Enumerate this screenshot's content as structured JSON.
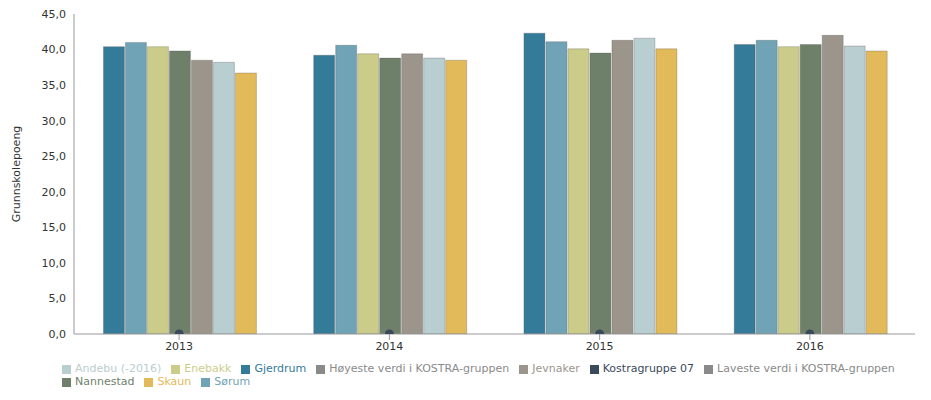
{
  "chart_data": {
    "type": "bar",
    "y_label": "Grunnskolepoeng",
    "categories": [
      "2013",
      "2014",
      "2015",
      "2016"
    ],
    "series": [
      {
        "name": "Gjerdrum",
        "color": "#347a99",
        "values": [
          40.4,
          39.2,
          42.3,
          40.7
        ]
      },
      {
        "name": "Sørum",
        "color": "#6fa3b5",
        "values": [
          41.0,
          40.6,
          41.1,
          41.3
        ]
      },
      {
        "name": "Enebakk",
        "color": "#cccc8a",
        "values": [
          40.4,
          39.4,
          40.1,
          40.4
        ]
      },
      {
        "name": "Nannestad",
        "color": "#6e7f6a",
        "values": [
          39.8,
          38.8,
          39.5,
          40.7
        ]
      },
      {
        "name": "Jevnaker",
        "color": "#9c958b",
        "values": [
          38.5,
          39.4,
          41.3,
          42.0
        ]
      },
      {
        "name": "Andebu (-2016)",
        "color": "#b9ced1",
        "values": [
          38.2,
          38.8,
          41.6,
          40.5
        ]
      },
      {
        "name": "Skaun",
        "color": "#e3ba5a",
        "values": [
          36.7,
          38.5,
          40.1,
          39.8
        ]
      },
      {
        "name": "Kostragruppe 07",
        "color": "#3b4a5a",
        "type": "scatter",
        "values": [
          0,
          0,
          0,
          0
        ]
      },
      {
        "name": "Høyeste verdi i KOSTRA-gruppen",
        "color": "#8a8a8a",
        "type": "line",
        "values": [
          null,
          null,
          null,
          null
        ]
      },
      {
        "name": "Laveste verdi i KOSTRA-gruppen",
        "color": "#8a8a8a",
        "type": "line",
        "values": [
          null,
          null,
          null,
          null
        ]
      }
    ],
    "ylim": [
      0,
      45
    ],
    "yticks": [
      {
        "value": 0,
        "label": "0,0"
      },
      {
        "value": 5,
        "label": "5,0"
      },
      {
        "value": 10,
        "label": "10,0"
      },
      {
        "value": 15,
        "label": "15,0"
      },
      {
        "value": 20,
        "label": "20,0"
      },
      {
        "value": 25,
        "label": "25,0"
      },
      {
        "value": 30,
        "label": "30,0"
      },
      {
        "value": 35,
        "label": "35,0"
      },
      {
        "value": 40,
        "label": "40,0"
      },
      {
        "value": 45,
        "label": "45,0"
      }
    ],
    "grid": false,
    "legend": "bottom-left",
    "data_labels": false
  }
}
